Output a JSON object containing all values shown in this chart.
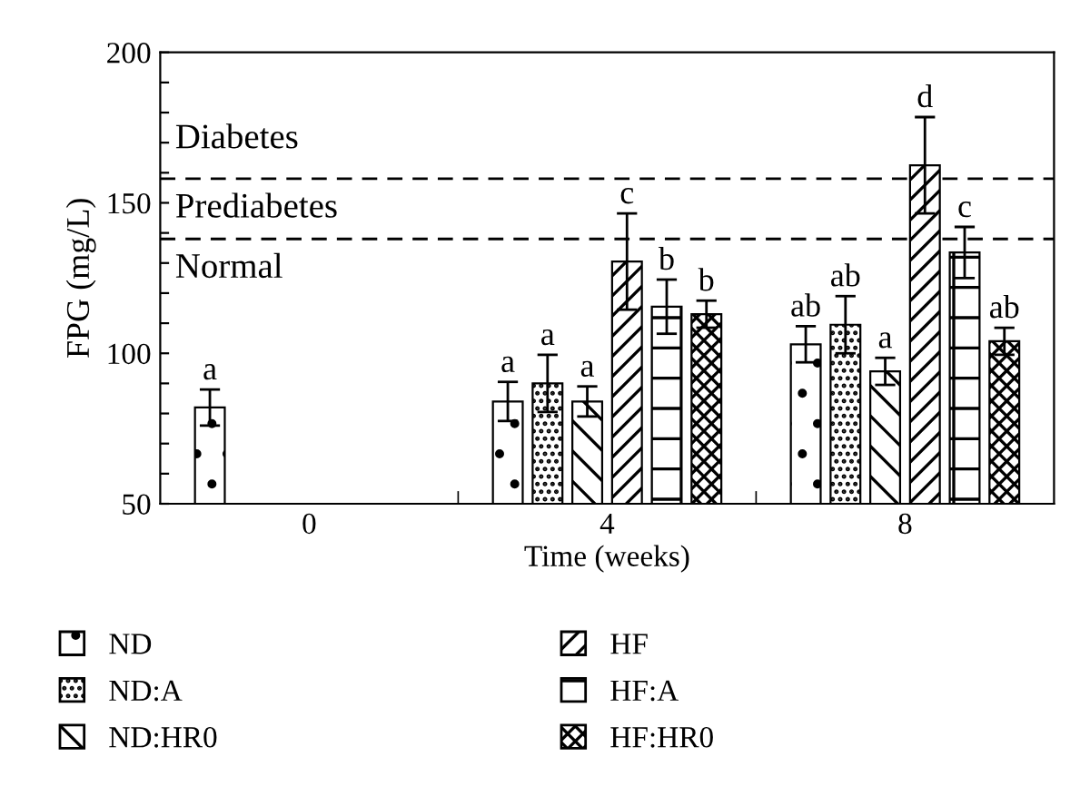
{
  "chart_data": {
    "type": "bar",
    "xlabel": "Time (weeks)",
    "ylabel": "FPG (mg/L)",
    "categories": [
      "0",
      "4",
      "8"
    ],
    "series": [
      {
        "name": "ND",
        "color": "#000000",
        "values": [
          82,
          84,
          103
        ],
        "errors": [
          6,
          6.5,
          6
        ],
        "value_labels": [
          "a",
          "a",
          "ab"
        ]
      },
      {
        "name": "ND:A",
        "color": "#000000",
        "values": [
          null,
          90,
          109.5
        ],
        "errors": [
          null,
          9.5,
          9.5
        ],
        "value_labels": [
          null,
          "a",
          "ab"
        ]
      },
      {
        "name": "ND:HR0",
        "color": "#000000",
        "values": [
          null,
          84,
          94
        ],
        "errors": [
          null,
          5,
          4.5
        ],
        "value_labels": [
          null,
          "a",
          "a"
        ]
      },
      {
        "name": "HF",
        "color": "#000000",
        "values": [
          null,
          130.5,
          162.5
        ],
        "errors": [
          null,
          16,
          16
        ],
        "value_labels": [
          null,
          "c",
          "d"
        ]
      },
      {
        "name": "HF:A",
        "color": "#000000",
        "values": [
          null,
          115.5,
          133.5
        ],
        "errors": [
          null,
          9,
          8.5
        ],
        "value_labels": [
          null,
          "b",
          "c"
        ]
      },
      {
        "name": "HF:HR0",
        "color": "#000000",
        "values": [
          null,
          113,
          104
        ],
        "errors": [
          null,
          4.5,
          4.5
        ],
        "value_labels": [
          null,
          "b",
          "ab"
        ]
      }
    ],
    "ylim": [
      50,
      200
    ],
    "yticks": [
      50,
      {
        "value": 60,
        "label": null
      },
      {
        "value": 70,
        "label": null
      },
      {
        "value": 80,
        "label": null
      },
      {
        "value": 90,
        "label": null
      },
      100,
      {
        "value": 110,
        "label": null
      },
      {
        "value": 120,
        "label": null
      },
      {
        "value": 130,
        "label": null
      },
      {
        "value": 140,
        "label": null
      },
      150,
      {
        "value": 160,
        "label": null
      },
      {
        "value": 170,
        "label": null
      },
      {
        "value": 180,
        "label": null
      },
      {
        "value": 190,
        "label": null
      },
      200
    ],
    "ref_lines": [
      {
        "axis": "y",
        "value": 158,
        "line_style": "dashed",
        "color": "#000000"
      },
      {
        "axis": "y",
        "value": 138,
        "line_style": "dashed",
        "color": "#000000"
      }
    ],
    "annotations": [
      "Diabetes",
      "Prediabetes",
      "Normal"
    ],
    "grid": false,
    "legend": "bottom"
  }
}
